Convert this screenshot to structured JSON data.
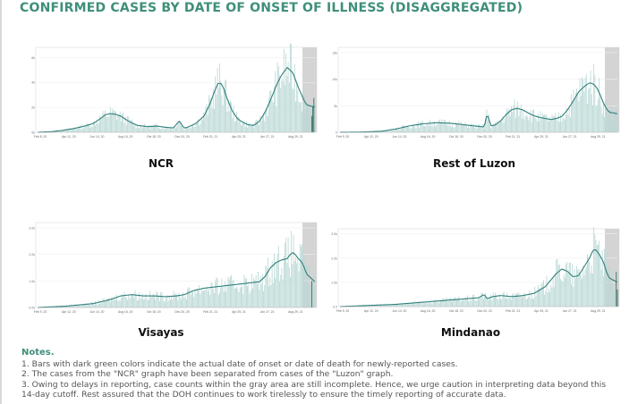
{
  "page": {
    "title": "CONFIRMED CASES BY DATE OF ONSET OF ILLNESS (DISAGGREGATED)",
    "notes_heading": "Notes.",
    "notes": [
      "1. Bars with dark green colors indicate the actual date of onset or date of death for newly-reported cases.",
      "2. The cases from the \"NCR\" graph have been separated from cases of the \"Luzon\" graph.",
      "3. Owing to delays in reporting, case counts within the gray area are still incomplete. Hence, we urge caution in interpreting data beyond this",
      "14-day cutoff. Rest assured that the DOH continues to work tirelessly to ensure the timely reporting of accurate data."
    ]
  },
  "colors": {
    "title": "#3f8f7a",
    "line": "#2f7f7a",
    "bars": "#b9d8d5",
    "bars_dark": "#2e6b5e",
    "gray_area": "#cfcfcf",
    "axis": "#bbbbbb"
  },
  "chart_data": [
    {
      "type": "bar",
      "title": "NCR",
      "series": [
        {
          "values_note": "bars + moving average line"
        }
      ],
      "x_ticks": [
        "Feb 8, 20",
        "Apr 12, 20",
        "Jun 14, 20",
        "Aug 16, 20",
        "Oct 18, 20",
        "Dec 20, 20",
        "Feb 21, 21",
        "Apr 25, 21",
        "Jun 27, 21",
        "Aug 29, 21"
      ],
      "y_ticks": [
        "0k",
        "2k",
        "4k",
        "6k"
      ],
      "ylim": [
        0,
        6.6
      ],
      "x": [
        0,
        0.05,
        0.09,
        0.13,
        0.17,
        0.2,
        0.22,
        0.245,
        0.26,
        0.28,
        0.3,
        0.32,
        0.34,
        0.36,
        0.38,
        0.4,
        0.43,
        0.46,
        0.49,
        0.51,
        0.515,
        0.525,
        0.535,
        0.55,
        0.57,
        0.6,
        0.62,
        0.64,
        0.65,
        0.66,
        0.67,
        0.68,
        0.7,
        0.72,
        0.74,
        0.76,
        0.78,
        0.8,
        0.82,
        0.84,
        0.86,
        0.87,
        0.88,
        0.89,
        0.9,
        0.91,
        0.92,
        0.93,
        0.94,
        0.95,
        0.96,
        0.97,
        1.0
      ],
      "values": [
        0,
        0.05,
        0.15,
        0.3,
        0.5,
        0.7,
        1.0,
        1.4,
        1.5,
        1.45,
        1.3,
        1.0,
        0.75,
        0.55,
        0.5,
        0.45,
        0.5,
        0.4,
        0.35,
        0.9,
        0.8,
        0.4,
        0.35,
        0.5,
        0.7,
        1.3,
        2.2,
        3.4,
        3.9,
        3.95,
        3.6,
        2.9,
        1.8,
        1.1,
        0.8,
        0.6,
        0.55,
        0.9,
        1.6,
        2.6,
        3.7,
        4.2,
        4.6,
        4.9,
        5.2,
        5.0,
        4.8,
        4.2,
        3.6,
        3.1,
        2.6,
        2.2,
        2.0
      ],
      "gray_from": 0.955
    },
    {
      "type": "bar",
      "title": "Rest of Luzon",
      "x_ticks": [
        "Feb 9, 20",
        "Apr 12, 20",
        "Jun 14, 20",
        "Aug 16, 20",
        "Oct 18, 20",
        "Dec 20, 20",
        "Feb 21, 21",
        "Apr 25, 21",
        "Jun 27, 21",
        "Aug 29, 21"
      ],
      "y_ticks": [
        "0",
        "5k",
        "10k",
        "15k"
      ],
      "ylim": [
        0,
        15.5
      ],
      "x": [
        0,
        0.08,
        0.15,
        0.2,
        0.25,
        0.3,
        0.35,
        0.4,
        0.45,
        0.5,
        0.52,
        0.53,
        0.545,
        0.56,
        0.58,
        0.6,
        0.62,
        0.64,
        0.66,
        0.68,
        0.7,
        0.72,
        0.74,
        0.76,
        0.78,
        0.8,
        0.82,
        0.84,
        0.86,
        0.88,
        0.89,
        0.9,
        0.91,
        0.92,
        0.93,
        0.94,
        0.95,
        0.96,
        0.97,
        1.0
      ],
      "values": [
        0,
        0.05,
        0.2,
        0.6,
        1.2,
        1.6,
        1.8,
        1.7,
        1.4,
        1.1,
        1.0,
        3.5,
        1.2,
        1.4,
        2.2,
        3.4,
        4.3,
        4.5,
        4.2,
        3.6,
        3.1,
        2.8,
        2.6,
        2.4,
        2.6,
        3.0,
        4.2,
        5.8,
        7.6,
        8.6,
        9.0,
        9.3,
        9.2,
        8.8,
        8.0,
        6.8,
        5.5,
        4.5,
        3.8,
        3.5
      ],
      "gray_from": 0.955
    },
    {
      "type": "bar",
      "title": "Visayas",
      "x_ticks": [
        "Feb 9, 20",
        "Apr 12, 20",
        "Jun 14, 20",
        "Aug 16, 20",
        "Oct 18, 20",
        "Dec 20, 20",
        "Feb 21, 21",
        "Apr 25, 21",
        "Jun 27, 21",
        "Aug 29, 21"
      ],
      "y_ticks": [
        "0.0k",
        "1.0k",
        "2.0k",
        "3.0k"
      ],
      "ylim": [
        0,
        3.2
      ],
      "x": [
        0,
        0.1,
        0.2,
        0.26,
        0.3,
        0.34,
        0.38,
        0.42,
        0.46,
        0.5,
        0.53,
        0.56,
        0.6,
        0.64,
        0.68,
        0.72,
        0.76,
        0.8,
        0.82,
        0.84,
        0.86,
        0.88,
        0.9,
        0.91,
        0.92,
        0.93,
        0.94,
        0.95,
        0.96,
        0.97,
        1.0
      ],
      "values": [
        0,
        0.05,
        0.15,
        0.3,
        0.45,
        0.5,
        0.45,
        0.45,
        0.42,
        0.45,
        0.5,
        0.65,
        0.75,
        0.8,
        0.85,
        0.9,
        0.95,
        1.0,
        1.2,
        1.55,
        1.75,
        1.85,
        1.9,
        2.05,
        2.15,
        2.05,
        1.9,
        1.8,
        1.6,
        1.3,
        1.0
      ],
      "gray_from": 0.955
    },
    {
      "type": "bar",
      "title": "Mindanao",
      "x_ticks": [
        "Feb 9, 20",
        "Apr 12, 20",
        "Jun 14, 20",
        "Aug 16, 20",
        "Oct 18, 20",
        "Dec 20, 20",
        "Feb 21, 21",
        "Apr 25, 21",
        "Jun 27, 21",
        "Aug 29, 21"
      ],
      "y_ticks": [
        "0.0",
        "1.0k",
        "2.0k",
        "3.0k"
      ],
      "ylim": [
        0,
        3.4
      ],
      "x": [
        0,
        0.1,
        0.2,
        0.3,
        0.4,
        0.45,
        0.5,
        0.52,
        0.53,
        0.55,
        0.58,
        0.62,
        0.66,
        0.7,
        0.74,
        0.76,
        0.78,
        0.8,
        0.82,
        0.84,
        0.86,
        0.88,
        0.9,
        0.91,
        0.92,
        0.93,
        0.94,
        0.95,
        0.96,
        0.97,
        1.0
      ],
      "values": [
        0,
        0.05,
        0.1,
        0.2,
        0.3,
        0.35,
        0.4,
        0.55,
        0.35,
        0.45,
        0.5,
        0.45,
        0.5,
        0.6,
        0.9,
        1.2,
        1.5,
        1.7,
        1.6,
        1.35,
        1.4,
        1.8,
        2.2,
        2.5,
        2.6,
        2.45,
        2.25,
        2.0,
        1.6,
        1.3,
        1.1
      ],
      "gray_from": 0.955
    }
  ]
}
